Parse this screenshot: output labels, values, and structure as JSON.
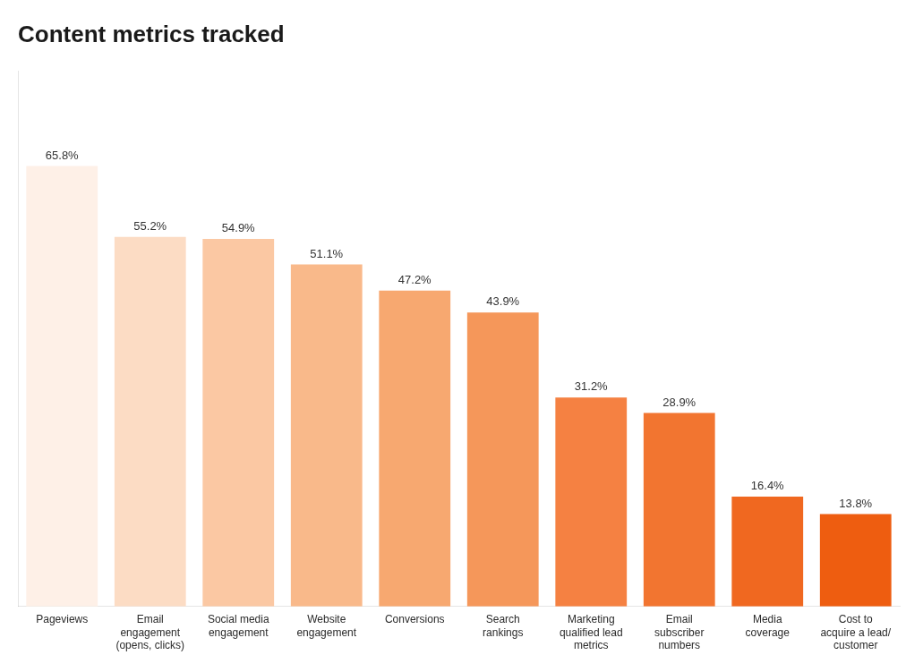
{
  "chart_data": {
    "type": "bar",
    "title": "Content metrics tracked",
    "categories": [
      "Pageviews",
      "Email\nengagement\n(opens, clicks)",
      "Social media\nengagement",
      "Website\nengagement",
      "Conversions",
      "Search\nrankings",
      "Marketing\nqualified lead\nmetrics",
      "Email\nsubscriber\nnumbers",
      "Media\ncoverage",
      "Cost to\nacquire a lead/\ncustomer"
    ],
    "values": [
      65.8,
      55.2,
      54.9,
      51.1,
      47.2,
      43.9,
      31.2,
      28.9,
      16.4,
      13.8
    ],
    "value_labels": [
      "65.8%",
      "55.2%",
      "54.9%",
      "51.1%",
      "47.2%",
      "43.9%",
      "31.2%",
      "28.9%",
      "16.4%",
      "13.8%"
    ],
    "colors": [
      "#FEF0E7",
      "#FCDCC4",
      "#FBC8A3",
      "#F9B98A",
      "#F7A870",
      "#F5975A",
      "#F58142",
      "#F27530",
      "#F06820",
      "#EE5D10"
    ],
    "ylim": [
      0,
      80
    ],
    "grid": false,
    "data_labels": true,
    "tick_labels": "x"
  }
}
